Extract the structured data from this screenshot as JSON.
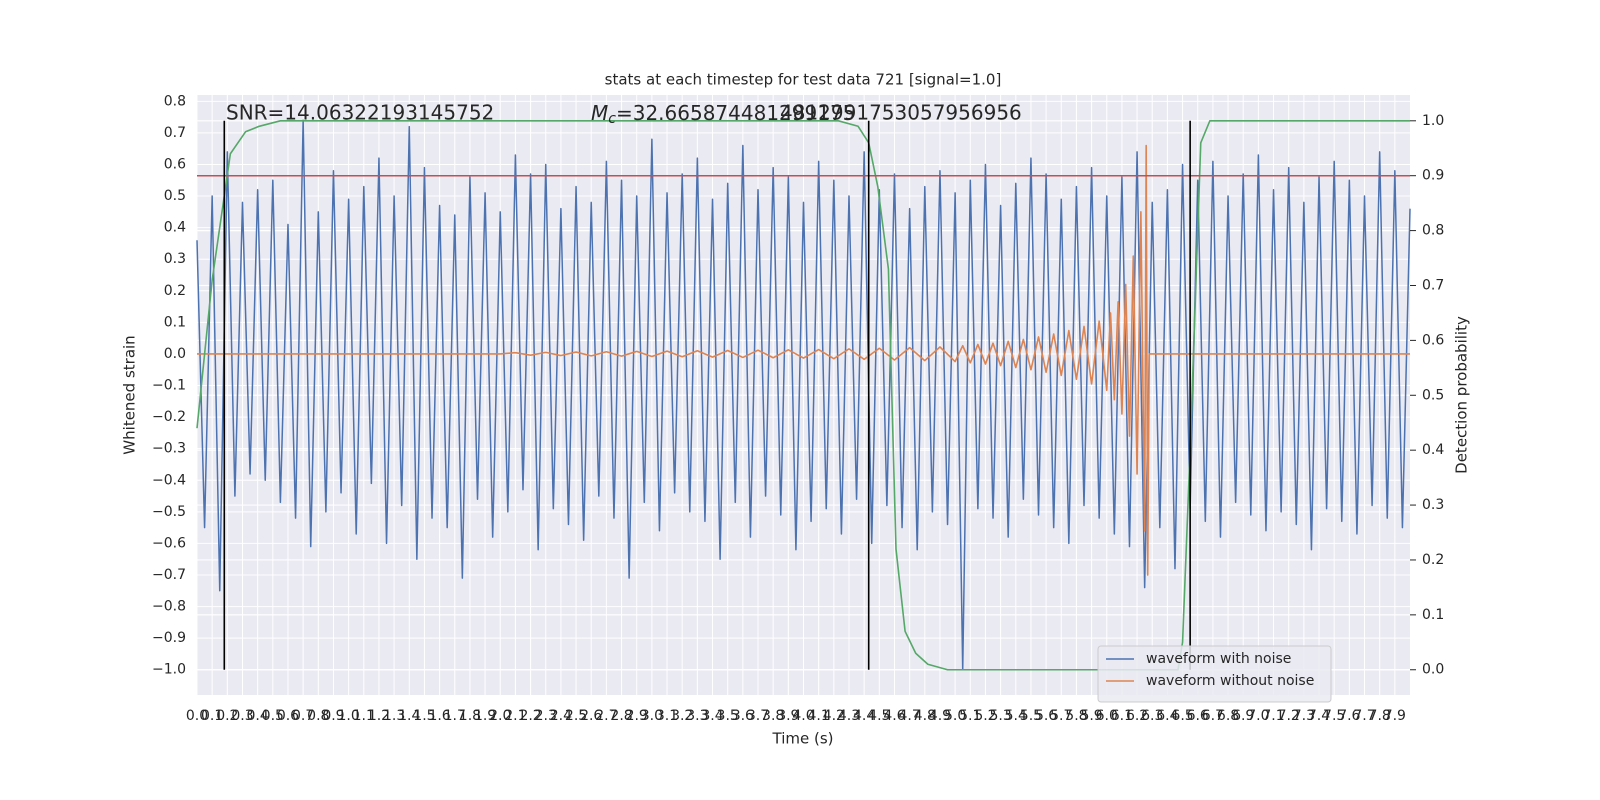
{
  "chart_data": {
    "type": "line",
    "title": "stats at each timestep for test data 721 [signal=1.0]",
    "xlabel": "Time (s)",
    "ylabel": "Whitened strain",
    "y2label": "Detection probability",
    "annotations": [
      "SNR=14.06322193145752",
      "4812991753057956956"
    ],
    "mc_annotation": {
      "symbol": "M",
      "subscript": "c",
      "text": "=32.665874481299175"
    },
    "xlim": [
      0,
      8.0
    ],
    "ylim": [
      -1.08,
      0.82
    ],
    "y2lim": [
      -0.046,
      1.047
    ],
    "grid": true,
    "legend": "lower right",
    "xticks": [
      {
        "value": 0,
        "label": "0.0"
      },
      0.1,
      0.2,
      0.3,
      0.4,
      0.5,
      0.6,
      0.7,
      0.8,
      0.9,
      {
        "value": 1,
        "label": "1.0"
      },
      1.1,
      1.2,
      1.3,
      1.4,
      1.5,
      1.6,
      1.7,
      1.8,
      1.9,
      {
        "value": 2,
        "label": "2.0"
      },
      2.1,
      2.2,
      2.3,
      2.4,
      2.5,
      2.6,
      2.7,
      2.8,
      2.9,
      {
        "value": 3,
        "label": "3.0"
      },
      3.1,
      3.2,
      3.3,
      3.4,
      3.5,
      3.6,
      3.7,
      3.8,
      3.9,
      {
        "value": 4,
        "label": "4.0"
      },
      4.1,
      4.2,
      4.3,
      4.4,
      4.5,
      4.6,
      4.7,
      4.8,
      4.9,
      {
        "value": 5,
        "label": "5.0"
      },
      5.1,
      5.2,
      5.3,
      5.4,
      5.5,
      5.6,
      5.7,
      5.8,
      5.9,
      {
        "value": 6,
        "label": "6.0"
      },
      6.1,
      6.2,
      6.3,
      6.4,
      6.5,
      6.6,
      6.7,
      6.8,
      6.9,
      {
        "value": 7,
        "label": "7.0"
      },
      7.1,
      7.2,
      7.3,
      7.4,
      7.5,
      7.6,
      7.7,
      7.8,
      7.9
    ],
    "yticks": [
      {
        "value": -1.0,
        "label": "−1.0"
      },
      {
        "value": -0.9,
        "label": "−0.9"
      },
      {
        "value": -0.8,
        "label": "−0.8"
      },
      {
        "value": -0.7,
        "label": "−0.7"
      },
      {
        "value": -0.6,
        "label": "−0.6"
      },
      {
        "value": -0.5,
        "label": "−0.5"
      },
      {
        "value": -0.4,
        "label": "−0.4"
      },
      {
        "value": -0.3,
        "label": "−0.3"
      },
      {
        "value": -0.2,
        "label": "−0.2"
      },
      {
        "value": -0.1,
        "label": "−0.1"
      },
      {
        "value": 0,
        "label": "0.0"
      },
      0.1,
      0.2,
      0.3,
      0.4,
      0.5,
      0.6,
      0.7,
      0.8
    ],
    "y2ticks": [
      {
        "value": 0,
        "label": "0.0"
      },
      0.1,
      0.2,
      0.3,
      0.4,
      0.5,
      0.6,
      0.7,
      0.8,
      0.9,
      {
        "value": 1,
        "label": "1.0"
      }
    ],
    "x": [
      0,
      0.05,
      0.1,
      0.15,
      0.2,
      0.25,
      0.3,
      0.35,
      0.4,
      0.45,
      0.5,
      0.55,
      0.6,
      0.65,
      0.7,
      0.75,
      0.8,
      0.85,
      0.9,
      0.95,
      1.0,
      1.05,
      1.1,
      1.15,
      1.2,
      1.25,
      1.3,
      1.35,
      1.4,
      1.45,
      1.5,
      1.55,
      1.6,
      1.65,
      1.7,
      1.75,
      1.8,
      1.85,
      1.9,
      1.95,
      2.0,
      2.05,
      2.1,
      2.15,
      2.2,
      2.25,
      2.3,
      2.35,
      2.4,
      2.45,
      2.5,
      2.55,
      2.6,
      2.65,
      2.7,
      2.75,
      2.8,
      2.85,
      2.9,
      2.95,
      3.0,
      3.05,
      3.1,
      3.15,
      3.2,
      3.25,
      3.3,
      3.35,
      3.4,
      3.45,
      3.5,
      3.55,
      3.6,
      3.65,
      3.7,
      3.75,
      3.8,
      3.85,
      3.9,
      3.95,
      4.0,
      4.05,
      4.1,
      4.15,
      4.2,
      4.25,
      4.3,
      4.35,
      4.4,
      4.45,
      4.5,
      4.55,
      4.6,
      4.65,
      4.7,
      4.75,
      4.8,
      4.85,
      4.9,
      4.95,
      5.0,
      5.05,
      5.1,
      5.15,
      5.2,
      5.25,
      5.3,
      5.35,
      5.4,
      5.45,
      5.5,
      5.55,
      5.6,
      5.65,
      5.7,
      5.75,
      5.8,
      5.85,
      5.9,
      5.95,
      6.0,
      6.05,
      6.1,
      6.15,
      6.2,
      6.25,
      6.3,
      6.35,
      6.4,
      6.45,
      6.5,
      6.55,
      6.6,
      6.65,
      6.7,
      6.75,
      6.8,
      6.85,
      6.9,
      6.95,
      7.0,
      7.05,
      7.1,
      7.15,
      7.2,
      7.25,
      7.3,
      7.35,
      7.4,
      7.45,
      7.5,
      7.55,
      7.6,
      7.65,
      7.7,
      7.75,
      7.8,
      7.85,
      7.9,
      7.95,
      8.0
    ],
    "series": [
      {
        "name": "waveform with noise",
        "color": "#4c72b0",
        "values": [
          0.36,
          -0.55,
          0.5,
          -0.75,
          0.64,
          -0.45,
          0.48,
          -0.38,
          0.52,
          -0.4,
          0.55,
          -0.47,
          0.41,
          -0.52,
          0.74,
          -0.61,
          0.45,
          -0.5,
          0.58,
          -0.44,
          0.49,
          -0.57,
          0.53,
          -0.41,
          0.62,
          -0.6,
          0.5,
          -0.48,
          0.72,
          -0.65,
          0.59,
          -0.52,
          0.47,
          -0.55,
          0.44,
          -0.71,
          0.56,
          -0.46,
          0.51,
          -0.58,
          0.45,
          -0.5,
          0.63,
          -0.43,
          0.57,
          -0.62,
          0.6,
          -0.49,
          0.46,
          -0.54,
          0.53,
          -0.59,
          0.48,
          -0.45,
          0.61,
          -0.52,
          0.55,
          -0.71,
          0.5,
          -0.47,
          0.68,
          -0.56,
          0.51,
          -0.44,
          0.57,
          -0.5,
          0.62,
          -0.53,
          0.49,
          -0.65,
          0.54,
          -0.47,
          0.66,
          -0.58,
          0.52,
          -0.45,
          0.59,
          -0.51,
          0.56,
          -0.62,
          0.48,
          -0.53,
          0.61,
          -0.49,
          0.55,
          -0.57,
          0.5,
          -0.46,
          0.64,
          -0.6,
          0.52,
          -0.48,
          0.57,
          -0.55,
          0.46,
          -0.62,
          0.53,
          -0.5,
          0.58,
          -0.54,
          0.51,
          -1.0,
          0.55,
          -0.49,
          0.6,
          -0.52,
          0.47,
          -0.58,
          0.54,
          -0.46,
          0.62,
          -0.51,
          0.57,
          -0.55,
          0.49,
          -0.6,
          0.53,
          -0.48,
          0.59,
          -0.52,
          0.5,
          -0.57,
          0.56,
          -0.61,
          0.64,
          -0.74,
          0.48,
          -0.55,
          0.52,
          -0.68,
          0.6,
          -0.49,
          0.55,
          -0.53,
          0.61,
          -0.58,
          0.5,
          -0.47,
          0.57,
          -0.51,
          0.63,
          -0.56,
          0.52,
          -0.5,
          0.59,
          -0.54,
          0.48,
          -0.62,
          0.56,
          -0.49,
          0.61,
          -0.53,
          0.55,
          -0.57,
          0.5,
          -0.48,
          0.64,
          -0.52,
          0.58,
          -0.55,
          0.46
        ]
      },
      {
        "name": "waveform without noise",
        "color": "#dd8452",
        "x": [
          0,
          2.0,
          2.1,
          2.2,
          2.3,
          2.4,
          2.5,
          2.6,
          2.7,
          2.8,
          2.9,
          3.0,
          3.1,
          3.2,
          3.3,
          3.4,
          3.5,
          3.6,
          3.7,
          3.8,
          3.9,
          4.0,
          4.1,
          4.2,
          4.3,
          4.4,
          4.5,
          4.6,
          4.7,
          4.8,
          4.9,
          5.0,
          5.05,
          5.1,
          5.15,
          5.2,
          5.25,
          5.3,
          5.35,
          5.4,
          5.45,
          5.5,
          5.55,
          5.6,
          5.65,
          5.7,
          5.75,
          5.8,
          5.85,
          5.9,
          5.95,
          6.0,
          6.025,
          6.05,
          6.075,
          6.1,
          6.125,
          6.15,
          6.175,
          6.2,
          6.225,
          6.25,
          6.26,
          6.27,
          6.28,
          8.0
        ],
        "values": [
          0,
          0,
          0.004,
          -0.004,
          0.005,
          -0.005,
          0.006,
          -0.006,
          0.007,
          -0.007,
          0.008,
          -0.008,
          0.009,
          -0.009,
          0.01,
          -0.01,
          0.011,
          -0.011,
          0.012,
          -0.012,
          0.013,
          -0.013,
          0.014,
          -0.015,
          0.016,
          -0.017,
          0.018,
          -0.019,
          0.02,
          -0.021,
          0.022,
          -0.024,
          0.026,
          -0.028,
          0.03,
          -0.032,
          0.034,
          -0.037,
          0.04,
          -0.043,
          0.046,
          -0.05,
          0.054,
          -0.058,
          0.063,
          -0.068,
          0.074,
          -0.08,
          0.087,
          -0.095,
          0.104,
          -0.115,
          0.13,
          -0.145,
          0.165,
          -0.19,
          0.22,
          -0.26,
          0.31,
          -0.38,
          0.45,
          -0.56,
          0.66,
          -0.7,
          0,
          0
        ]
      },
      {
        "color": "#55a868",
        "axis": "y2",
        "x": [
          0,
          0.1,
          0.22,
          0.32,
          0.41,
          0.55,
          4.23,
          4.36,
          4.43,
          4.49,
          4.56,
          4.61,
          4.67,
          4.74,
          4.82,
          4.95,
          6.47,
          6.5,
          6.55,
          6.62,
          6.68,
          8.0
        ],
        "values": [
          0.44,
          0.71,
          0.94,
          0.98,
          0.99,
          1.0,
          1.0,
          0.99,
          0.96,
          0.88,
          0.73,
          0.22,
          0.07,
          0.03,
          0.01,
          0.0,
          0.0,
          0.05,
          0.4,
          0.96,
          1.0,
          1.0
        ]
      }
    ],
    "threshold": {
      "value": 0.9,
      "axis": "y2",
      "color": "#c44e52"
    },
    "vlines": {
      "x": [
        0.18,
        4.43,
        6.55
      ],
      "ymin": 0,
      "ymax": 1,
      "axis": "y2",
      "color": "#000000"
    }
  }
}
